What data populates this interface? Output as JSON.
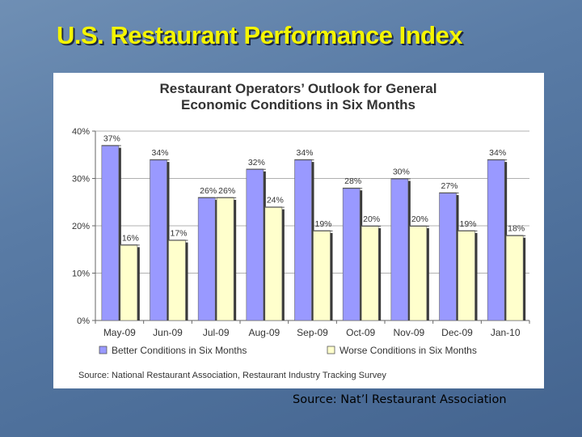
{
  "slide": {
    "title": "U.S. Restaurant Performance Index",
    "source_caption": "Source: Nat’l Restaurant Association"
  },
  "colors": {
    "better": "#9999ff",
    "worse": "#ffffcc",
    "title": "#f5f500",
    "grid": "#b0b0b0"
  },
  "chart_data": {
    "type": "bar",
    "title": "Restaurant Operators’ Outlook for General Economic Conditions in Six Months",
    "title_lines": [
      "Restaurant Operators’ Outlook for General",
      "Economic Conditions in Six Months"
    ],
    "categories": [
      "May-09",
      "Jun-09",
      "Jul-09",
      "Aug-09",
      "Sep-09",
      "Oct-09",
      "Nov-09",
      "Dec-09",
      "Jan-10"
    ],
    "series": [
      {
        "name": "Better Conditions in Six Months",
        "values": [
          37,
          34,
          26,
          32,
          34,
          28,
          30,
          27,
          34
        ]
      },
      {
        "name": "Worse Conditions in Six Months",
        "values": [
          16,
          17,
          26,
          24,
          19,
          20,
          20,
          19,
          18
        ]
      }
    ],
    "ylim": [
      0,
      40
    ],
    "yticks": [
      0,
      10,
      20,
      30,
      40
    ],
    "ytick_labels": [
      "0%",
      "10%",
      "20%",
      "30%",
      "40%"
    ],
    "value_suffix": "%",
    "grid": true,
    "legend_position": "bottom",
    "source": "Source: National Restaurant Association, Restaurant Industry Tracking Survey"
  }
}
